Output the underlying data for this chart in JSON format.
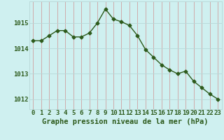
{
  "x": [
    0,
    1,
    2,
    3,
    4,
    5,
    6,
    7,
    8,
    9,
    10,
    11,
    12,
    13,
    14,
    15,
    16,
    17,
    18,
    19,
    20,
    21,
    22,
    23
  ],
  "y": [
    1014.3,
    1014.3,
    1014.5,
    1014.7,
    1014.7,
    1014.45,
    1014.45,
    1014.6,
    1015.0,
    1015.55,
    1015.15,
    1015.05,
    1014.9,
    1014.5,
    1013.95,
    1013.65,
    1013.35,
    1013.15,
    1013.0,
    1013.1,
    1012.7,
    1012.45,
    1012.2,
    1012.0
  ],
  "line_color": "#2d5a1b",
  "marker": "D",
  "markersize": 2.5,
  "linewidth": 1.0,
  "bg_color": "#cff0f0",
  "grid_color_v": "#d0a0a0",
  "grid_color_h": "#b8d8d8",
  "ylabel_ticks": [
    1012,
    1013,
    1014,
    1015
  ],
  "xlabel": "Graphe pression niveau de la mer (hPa)",
  "xlim": [
    -0.5,
    23.5
  ],
  "ylim": [
    1011.6,
    1015.85
  ],
  "tick_color": "#2d5a1b",
  "tick_fontsize": 6.5,
  "xlabel_fontsize": 7.5,
  "ytick_fontsize": 6.5
}
